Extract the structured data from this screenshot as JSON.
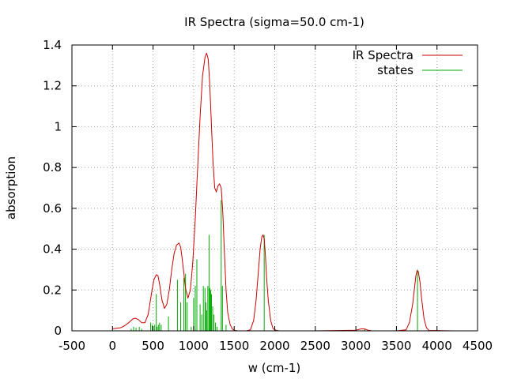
{
  "chart_data": {
    "type": "line",
    "title": "IR Spectra (sigma=50.0 cm-1)",
    "xlabel": "w (cm-1)",
    "ylabel": "absorption",
    "xlim": [
      -500,
      4500
    ],
    "ylim": [
      0,
      1.4
    ],
    "xticks": [
      -500,
      0,
      500,
      1000,
      1500,
      2000,
      2500,
      3000,
      3500,
      4000,
      4500
    ],
    "yticks": [
      0,
      0.2,
      0.4,
      0.6,
      0.8,
      1,
      1.2,
      1.4
    ],
    "xtick_labels": [
      "-500",
      "0",
      "500",
      "1000",
      "1500",
      "2000",
      "2500",
      "3000",
      "3500",
      "4000",
      "4500"
    ],
    "ytick_labels": [
      "0",
      "0.2",
      "0.4",
      "0.6",
      "0.8",
      "1",
      "1.2",
      "1.4"
    ],
    "grid": true,
    "legend_position": "top-right",
    "series": [
      {
        "name": "IR Spectra",
        "type": "line",
        "color": "#cc0000",
        "x": [
          0,
          100,
          150,
          200,
          250,
          280,
          320,
          360,
          400,
          440,
          480,
          510,
          540,
          560,
          580,
          610,
          640,
          670,
          700,
          730,
          760,
          790,
          820,
          840,
          860,
          880,
          900,
          930,
          960,
          990,
          1020,
          1050,
          1080,
          1110,
          1140,
          1160,
          1180,
          1200,
          1220,
          1240,
          1260,
          1280,
          1300,
          1320,
          1340,
          1360,
          1380,
          1400,
          1420,
          1450,
          1480,
          1510,
          1550,
          1600,
          1650,
          1700,
          1740,
          1770,
          1800,
          1820,
          1840,
          1855,
          1870,
          1885,
          1900,
          1920,
          1950,
          1980,
          2020,
          2060,
          2100,
          2500,
          3000,
          3050,
          3080,
          3120,
          3150,
          3200,
          3500,
          3620,
          3660,
          3700,
          3720,
          3740,
          3755,
          3770,
          3790,
          3810,
          3840,
          3870,
          3900,
          4200
        ],
        "y": [
          0.01,
          0.015,
          0.025,
          0.04,
          0.058,
          0.062,
          0.055,
          0.04,
          0.04,
          0.08,
          0.18,
          0.25,
          0.275,
          0.27,
          0.23,
          0.15,
          0.11,
          0.13,
          0.2,
          0.3,
          0.38,
          0.42,
          0.43,
          0.41,
          0.35,
          0.28,
          0.21,
          0.16,
          0.2,
          0.34,
          0.55,
          0.8,
          1.05,
          1.25,
          1.34,
          1.36,
          1.33,
          1.2,
          1.0,
          0.82,
          0.7,
          0.68,
          0.71,
          0.72,
          0.7,
          0.58,
          0.38,
          0.2,
          0.09,
          0.03,
          0.008,
          0.002,
          0,
          0,
          0,
          0.005,
          0.05,
          0.15,
          0.3,
          0.4,
          0.46,
          0.47,
          0.45,
          0.37,
          0.26,
          0.15,
          0.05,
          0.01,
          0.002,
          0,
          0,
          0,
          0.003,
          0.008,
          0.01,
          0.008,
          0.003,
          0,
          0,
          0.005,
          0.04,
          0.13,
          0.2,
          0.27,
          0.295,
          0.29,
          0.24,
          0.16,
          0.06,
          0.015,
          0.002,
          0
        ]
      },
      {
        "name": "states",
        "type": "impulses",
        "color": "#00aa00",
        "x": [
          230,
          260,
          290,
          330,
          360,
          470,
          490,
          520,
          540,
          550,
          565,
          580,
          600,
          690,
          800,
          840,
          880,
          900,
          920,
          970,
          1000,
          1020,
          1040,
          1080,
          1100,
          1120,
          1140,
          1150,
          1160,
          1175,
          1190,
          1200,
          1210,
          1220,
          1235,
          1250,
          1270,
          1290,
          1340,
          1355,
          1400,
          1870,
          3110,
          3760
        ],
        "y": [
          0.01,
          0.02,
          0.015,
          0.02,
          0.01,
          0.04,
          0.03,
          0.03,
          0.18,
          0.02,
          0.03,
          0.04,
          0.03,
          0.07,
          0.25,
          0.14,
          0.26,
          0.28,
          0.14,
          0.02,
          0.16,
          0.22,
          0.35,
          0.13,
          0.08,
          0.22,
          0.21,
          0.14,
          0.1,
          0.22,
          0.47,
          0.21,
          0.2,
          0.18,
          0.12,
          0.08,
          0.04,
          0.02,
          0.64,
          0.22,
          0.03,
          0.47,
          0.01,
          0.3
        ]
      }
    ]
  }
}
